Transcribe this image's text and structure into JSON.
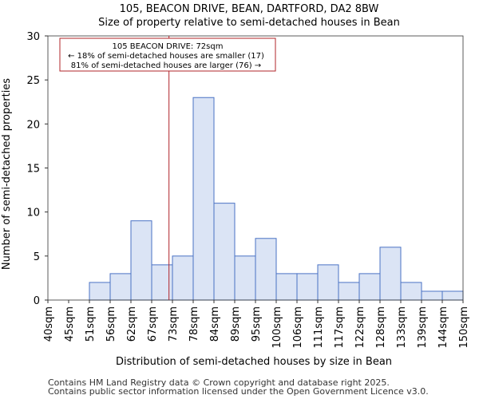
{
  "chart_data": {
    "type": "bar",
    "title": "105, BEACON DRIVE, BEAN, DARTFORD, DA2 8BW",
    "subtitle": "Size of property relative to semi-detached houses in Bean",
    "xlabel": "Distribution of semi-detached houses by size in Bean",
    "ylabel": "Number of semi-detached properties",
    "bin_edges": [
      "40sqm",
      "45sqm",
      "51sqm",
      "56sqm",
      "62sqm",
      "67sqm",
      "73sqm",
      "78sqm",
      "84sqm",
      "89sqm",
      "95sqm",
      "100sqm",
      "106sqm",
      "111sqm",
      "117sqm",
      "122sqm",
      "128sqm",
      "133sqm",
      "139sqm",
      "144sqm",
      "150sqm"
    ],
    "values": [
      0,
      0,
      2,
      3,
      9,
      4,
      5,
      23,
      11,
      5,
      7,
      3,
      3,
      4,
      2,
      3,
      6,
      2,
      1,
      1
    ],
    "ylim": [
      0,
      30
    ],
    "yticks": [
      0,
      5,
      10,
      15,
      20,
      25,
      30
    ],
    "grid": false,
    "bar_fill": "#dbe4f5",
    "bar_edge": "#4a72c4",
    "marker": {
      "value_sqm": 72,
      "color": "#b0252a",
      "lines": [
        "105 BEACON DRIVE: 72sqm",
        "← 18% of semi-detached houses are smaller (17)",
        "81% of semi-detached houses are larger (76) →"
      ]
    }
  },
  "footer": {
    "line1": "Contains HM Land Registry data © Crown copyright and database right 2025.",
    "line2": "Contains public sector information licensed under the Open Government Licence v3.0."
  }
}
